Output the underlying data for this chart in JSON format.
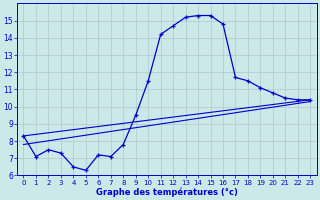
{
  "xlabel": "Graphe des températures (°c)",
  "background_color": "#cde8e8",
  "grid_color": "#b0c8c8",
  "line_color": "#0000cc",
  "x_hours": [
    0,
    1,
    2,
    3,
    4,
    5,
    6,
    7,
    8,
    9,
    10,
    11,
    12,
    13,
    14,
    15,
    16,
    17,
    18,
    19,
    20,
    21,
    22,
    23
  ],
  "temp_main": [
    8.3,
    7.1,
    7.5,
    7.3,
    6.5,
    6.3,
    7.2,
    7.1,
    7.8,
    9.5,
    11.5,
    14.2,
    14.7,
    15.2,
    15.3,
    15.3,
    14.8,
    11.7,
    11.5,
    11.1,
    10.8,
    10.5,
    10.4,
    10.4
  ],
  "temp_line1_start": 8.3,
  "temp_line1_end": 10.4,
  "temp_line2_start": 7.8,
  "temp_line2_end": 10.3,
  "ylim": [
    6,
    16
  ],
  "yticks": [
    6,
    7,
    8,
    9,
    10,
    11,
    12,
    13,
    14,
    15
  ],
  "xlim": [
    -0.5,
    23.5
  ],
  "figsize": [
    3.2,
    2.0
  ],
  "dpi": 100
}
